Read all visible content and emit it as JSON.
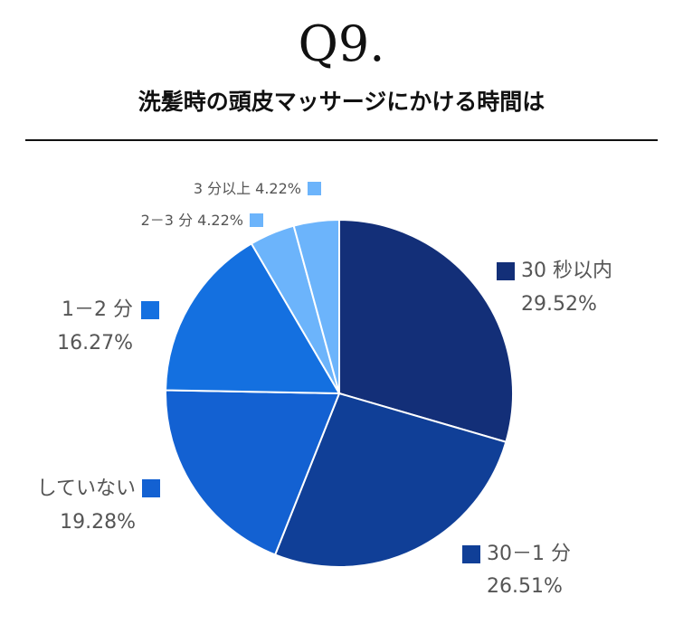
{
  "header": {
    "title": "Q9.",
    "subtitle": "洗髪時の頭皮マッサージにかける時間は"
  },
  "chart_data": {
    "type": "pie",
    "title": "洗髪時の頭皮マッサージにかける時間は",
    "start_angle_deg": 0,
    "direction": "clockwise",
    "slices": [
      {
        "name": "30 秒以内",
        "value": 29.52,
        "label": "29.52%",
        "color": "#132f78"
      },
      {
        "name": "30－1 分",
        "value": 26.51,
        "label": "26.51%",
        "color": "#103f97"
      },
      {
        "name": "していない",
        "value": 19.28,
        "label": "19.28%",
        "color": "#1361d2"
      },
      {
        "name": "1－2 分",
        "value": 16.27,
        "label": "16.27%",
        "color": "#1470e0"
      },
      {
        "name": "2－3 分",
        "value": 4.22,
        "label": "4.22%",
        "color": "#6cb4fb"
      },
      {
        "name": "3 分以上",
        "value": 4.22,
        "label": "4.22%",
        "color": "#6cb4fb"
      }
    ]
  }
}
